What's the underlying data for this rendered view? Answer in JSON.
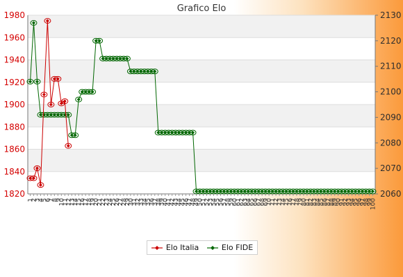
{
  "chart_data": {
    "type": "line",
    "title": "Grafico Elo",
    "x_tick_labels_visible_start": [
      "1",
      "2",
      "3",
      "4",
      "5",
      "6",
      "7",
      "8",
      "9",
      "10"
    ],
    "y_left": {
      "ylim": [
        1820,
        1980
      ],
      "ticks": [
        1820,
        1840,
        1860,
        1880,
        1900,
        1920,
        1940,
        1960,
        1980
      ],
      "color": "#cc0000"
    },
    "y_right": {
      "ylim": [
        2060,
        2130
      ],
      "ticks": [
        2060,
        2070,
        2080,
        2090,
        2100,
        2110,
        2120,
        2130
      ],
      "color": "#333333"
    },
    "num_points": 100,
    "grid": "horizontal bands",
    "legend_position": "bottom",
    "series": [
      {
        "name": "Elo Italia",
        "axis": "left",
        "color": "#cc0000",
        "marker": "diamond",
        "values": [
          1834,
          1834,
          1843,
          1828,
          1909,
          1975,
          1900,
          1923,
          1923,
          1901,
          1903,
          1863
        ]
      },
      {
        "name": "Elo FIDE",
        "axis": "right",
        "color": "#006600",
        "marker": "diamond",
        "values": [
          2104,
          2127,
          2104,
          2091,
          2091,
          2091,
          2091,
          2091,
          2091,
          2091,
          2091,
          2091,
          2083,
          2083,
          2097,
          2100,
          2100,
          2100,
          2100,
          2120,
          2120,
          2113,
          2113,
          2113,
          2113,
          2113,
          2113,
          2113,
          2113,
          2108,
          2108,
          2108,
          2108,
          2108,
          2108,
          2108,
          2108,
          2084,
          2084,
          2084,
          2084,
          2084,
          2084,
          2084,
          2084,
          2084,
          2084,
          2084,
          2061,
          2061,
          2061,
          2061,
          2061,
          2061,
          2061,
          2061,
          2061,
          2061,
          2061,
          2061,
          2061,
          2061,
          2061,
          2061,
          2061,
          2061,
          2061,
          2061,
          2061,
          2061,
          2061,
          2061,
          2061,
          2061,
          2061,
          2061,
          2061,
          2061,
          2061,
          2061,
          2061,
          2061,
          2061,
          2061,
          2061,
          2061,
          2061,
          2061,
          2061,
          2061,
          2061,
          2061,
          2061,
          2061,
          2061,
          2061,
          2061,
          2061,
          2061,
          2061
        ]
      }
    ]
  }
}
